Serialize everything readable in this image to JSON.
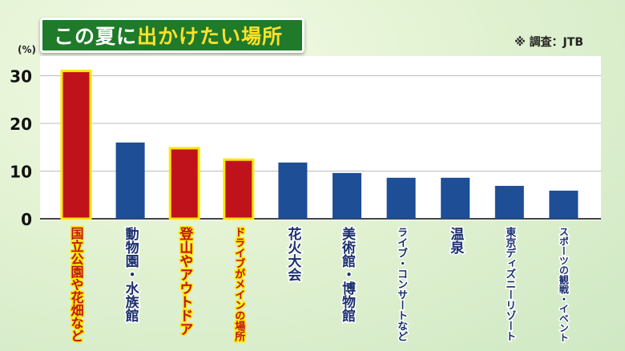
{
  "header": {
    "title_part1": "この夏に",
    "title_part2": "出かけたい場所",
    "source": "※ 調査：JTB"
  },
  "colors": {
    "highlight_bar": "#c0121a",
    "highlight_border": "#ffe600",
    "normal_bar": "#1d4e96",
    "highlight_text": "#c0121a",
    "normal_text": "#1a2f6e"
  },
  "chart_data": {
    "type": "bar",
    "title": "この夏に出かけたい場所",
    "ylabel": "(%)",
    "ylim": [
      0,
      35
    ],
    "yticks": [
      0,
      10,
      20,
      30
    ],
    "grid": true,
    "categories": [
      "国立公園や花畑など",
      "動物園・水族館",
      "登山やアウトドア",
      "ドライブがメインの場所",
      "花火大会",
      "美術館・博物館",
      "ライブ・コンサートなど",
      "温泉",
      "東京ディズニーリゾート",
      "スポーツの観戦・イベント"
    ],
    "values": [
      31.0,
      16.0,
      14.8,
      12.4,
      11.8,
      9.6,
      8.6,
      8.6,
      6.9,
      5.9
    ],
    "highlighted": [
      true,
      false,
      true,
      true,
      false,
      false,
      false,
      false,
      false,
      false
    ]
  }
}
